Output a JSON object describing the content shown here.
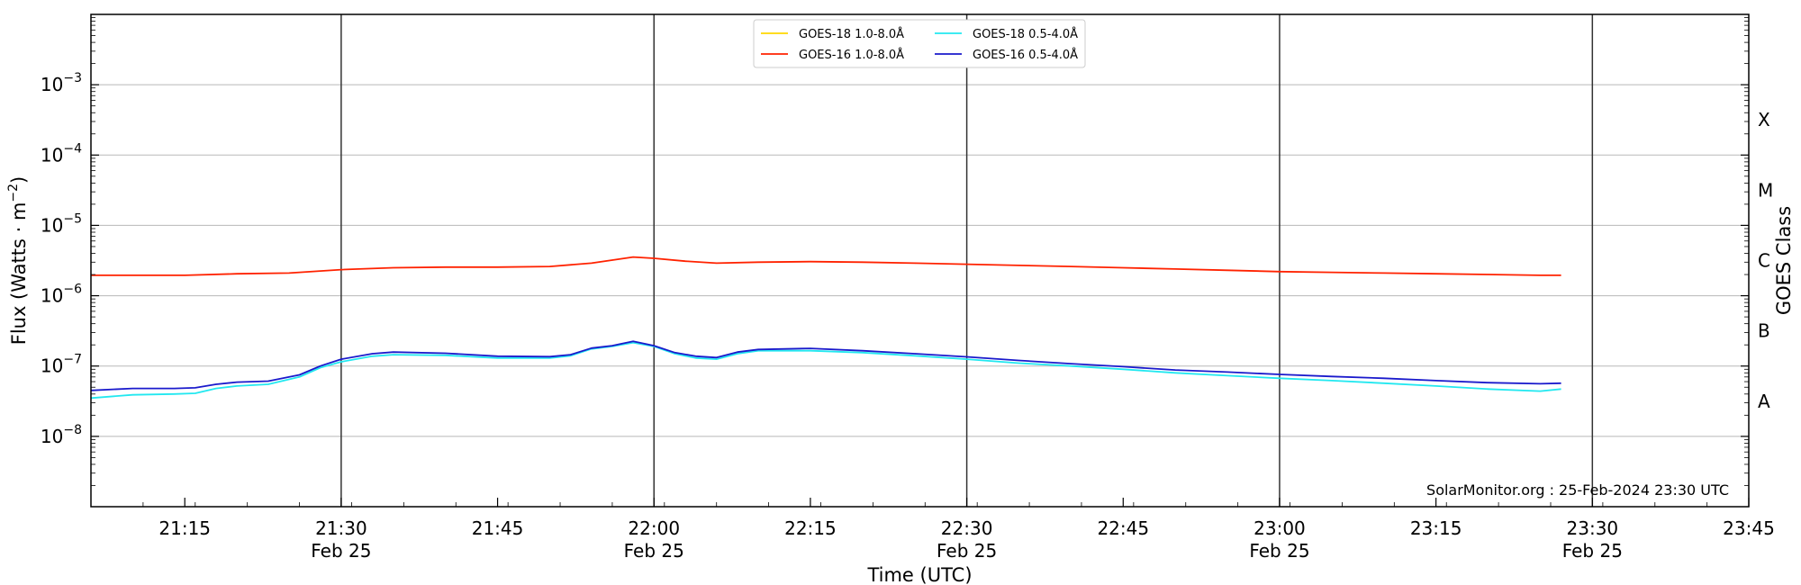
{
  "chart_data": {
    "type": "line",
    "xlabel": "Time (UTC)",
    "ylabel": "Flux (Watts · m⁻²)",
    "ylabel_right": "GOES Class",
    "ylim": [
      1e-09,
      0.01
    ],
    "yscale": "log",
    "xlim": [
      "21:06",
      "23:45"
    ],
    "grid": "horizontal gridlines at decades; vertical lines every 30 minutes",
    "legend_position": "top-center",
    "credit": "SolarMonitor.org : 25-Feb-2024 23:30 UTC",
    "x_ticks": [
      {
        "time": "21:15",
        "label": "21:15",
        "sublabel": ""
      },
      {
        "time": "21:30",
        "label": "21:30",
        "sublabel": "Feb 25"
      },
      {
        "time": "21:45",
        "label": "21:45",
        "sublabel": ""
      },
      {
        "time": "22:00",
        "label": "22:00",
        "sublabel": "Feb 25"
      },
      {
        "time": "22:15",
        "label": "22:15",
        "sublabel": ""
      },
      {
        "time": "22:30",
        "label": "22:30",
        "sublabel": "Feb 25"
      },
      {
        "time": "22:45",
        "label": "22:45",
        "sublabel": ""
      },
      {
        "time": "23:00",
        "label": "23:00",
        "sublabel": "Feb 25"
      },
      {
        "time": "23:15",
        "label": "23:15",
        "sublabel": ""
      },
      {
        "time": "23:30",
        "label": "23:30",
        "sublabel": "Feb 25"
      },
      {
        "time": "23:45",
        "label": "23:45",
        "sublabel": ""
      }
    ],
    "vlines": [
      "21:30",
      "22:00",
      "22:30",
      "23:00",
      "23:30"
    ],
    "y_ticks": [
      {
        "value": 1e-08,
        "base": "10",
        "exp": "−8"
      },
      {
        "value": 1e-07,
        "base": "10",
        "exp": "−7"
      },
      {
        "value": 1e-06,
        "base": "10",
        "exp": "−6"
      },
      {
        "value": 1e-05,
        "base": "10",
        "exp": "−5"
      },
      {
        "value": 0.0001,
        "base": "10",
        "exp": "−4"
      },
      {
        "value": 0.001,
        "base": "10",
        "exp": "−3"
      }
    ],
    "goes_classes": [
      {
        "label": "A",
        "value": 3.16e-08
      },
      {
        "label": "B",
        "value": 3.16e-07
      },
      {
        "label": "C",
        "value": 3.16e-06
      },
      {
        "label": "M",
        "value": 3.16e-05
      },
      {
        "label": "X",
        "value": 0.000316
      }
    ],
    "series": [
      {
        "name": "GOES-18 1.0-8.0Å",
        "color": "#ffd700",
        "points": []
      },
      {
        "name": "GOES-16 1.0-8.0Å",
        "color": "#ff2200",
        "points": [
          [
            "21:06",
            1.95e-06
          ],
          [
            "21:15",
            1.95e-06
          ],
          [
            "21:20",
            2.05e-06
          ],
          [
            "21:25",
            2.1e-06
          ],
          [
            "21:30",
            2.35e-06
          ],
          [
            "21:35",
            2.5e-06
          ],
          [
            "21:40",
            2.55e-06
          ],
          [
            "21:45",
            2.55e-06
          ],
          [
            "21:50",
            2.6e-06
          ],
          [
            "21:54",
            2.9e-06
          ],
          [
            "21:58",
            3.55e-06
          ],
          [
            "22:00",
            3.4e-06
          ],
          [
            "22:03",
            3.1e-06
          ],
          [
            "22:06",
            2.9e-06
          ],
          [
            "22:10",
            3e-06
          ],
          [
            "22:15",
            3.05e-06
          ],
          [
            "22:20",
            3e-06
          ],
          [
            "22:25",
            2.9e-06
          ],
          [
            "22:30",
            2.8e-06
          ],
          [
            "22:35",
            2.7e-06
          ],
          [
            "22:40",
            2.6e-06
          ],
          [
            "22:45",
            2.5e-06
          ],
          [
            "22:50",
            2.4e-06
          ],
          [
            "22:55",
            2.3e-06
          ],
          [
            "23:00",
            2.2e-06
          ],
          [
            "23:05",
            2.15e-06
          ],
          [
            "23:10",
            2.1e-06
          ],
          [
            "23:15",
            2.05e-06
          ],
          [
            "23:20",
            2e-06
          ],
          [
            "23:25",
            1.95e-06
          ],
          [
            "23:27",
            1.95e-06
          ]
        ]
      },
      {
        "name": "GOES-18 0.5-4.0Å",
        "color": "#22e8f0",
        "points": [
          [
            "21:06",
            3.5e-08
          ],
          [
            "21:10",
            3.9e-08
          ],
          [
            "21:14",
            4e-08
          ],
          [
            "21:16",
            4.1e-08
          ],
          [
            "21:18",
            4.8e-08
          ],
          [
            "21:20",
            5.2e-08
          ],
          [
            "21:23",
            5.5e-08
          ],
          [
            "21:26",
            7e-08
          ],
          [
            "21:28",
            9.5e-08
          ],
          [
            "21:30",
            1.15e-07
          ],
          [
            "21:33",
            1.38e-07
          ],
          [
            "21:35",
            1.45e-07
          ],
          [
            "21:40",
            1.42e-07
          ],
          [
            "21:45",
            1.3e-07
          ],
          [
            "21:50",
            1.3e-07
          ],
          [
            "21:52",
            1.4e-07
          ],
          [
            "21:54",
            1.75e-07
          ],
          [
            "21:56",
            1.9e-07
          ],
          [
            "21:58",
            2.15e-07
          ],
          [
            "22:00",
            1.9e-07
          ],
          [
            "22:02",
            1.5e-07
          ],
          [
            "22:04",
            1.3e-07
          ],
          [
            "22:06",
            1.25e-07
          ],
          [
            "22:08",
            1.5e-07
          ],
          [
            "22:10",
            1.65e-07
          ],
          [
            "22:15",
            1.65e-07
          ],
          [
            "22:20",
            1.55e-07
          ],
          [
            "22:25",
            1.4e-07
          ],
          [
            "22:30",
            1.25e-07
          ],
          [
            "22:35",
            1.1e-07
          ],
          [
            "22:40",
            1e-07
          ],
          [
            "22:45",
            9e-08
          ],
          [
            "22:50",
            8e-08
          ],
          [
            "22:55",
            7.3e-08
          ],
          [
            "23:00",
            6.7e-08
          ],
          [
            "23:05",
            6.2e-08
          ],
          [
            "23:10",
            5.7e-08
          ],
          [
            "23:15",
            5.2e-08
          ],
          [
            "23:20",
            4.7e-08
          ],
          [
            "23:25",
            4.4e-08
          ],
          [
            "23:27",
            4.7e-08
          ]
        ]
      },
      {
        "name": "GOES-16 0.5-4.0Å",
        "color": "#1a1acc",
        "points": [
          [
            "21:06",
            4.5e-08
          ],
          [
            "21:10",
            4.8e-08
          ],
          [
            "21:14",
            4.8e-08
          ],
          [
            "21:16",
            4.9e-08
          ],
          [
            "21:18",
            5.5e-08
          ],
          [
            "21:20",
            5.9e-08
          ],
          [
            "21:23",
            6.1e-08
          ],
          [
            "21:26",
            7.5e-08
          ],
          [
            "21:28",
            1e-07
          ],
          [
            "21:30",
            1.25e-07
          ],
          [
            "21:33",
            1.5e-07
          ],
          [
            "21:35",
            1.58e-07
          ],
          [
            "21:40",
            1.52e-07
          ],
          [
            "21:45",
            1.38e-07
          ],
          [
            "21:50",
            1.36e-07
          ],
          [
            "21:52",
            1.45e-07
          ],
          [
            "21:54",
            1.8e-07
          ],
          [
            "21:56",
            1.95e-07
          ],
          [
            "21:58",
            2.25e-07
          ],
          [
            "22:00",
            1.95e-07
          ],
          [
            "22:02",
            1.55e-07
          ],
          [
            "22:04",
            1.38e-07
          ],
          [
            "22:06",
            1.32e-07
          ],
          [
            "22:08",
            1.58e-07
          ],
          [
            "22:10",
            1.72e-07
          ],
          [
            "22:15",
            1.78e-07
          ],
          [
            "22:20",
            1.65e-07
          ],
          [
            "22:25",
            1.5e-07
          ],
          [
            "22:30",
            1.35e-07
          ],
          [
            "22:35",
            1.2e-07
          ],
          [
            "22:40",
            1.08e-07
          ],
          [
            "22:45",
            9.8e-08
          ],
          [
            "22:50",
            8.8e-08
          ],
          [
            "22:55",
            8.2e-08
          ],
          [
            "23:00",
            7.6e-08
          ],
          [
            "23:05",
            7.1e-08
          ],
          [
            "23:10",
            6.7e-08
          ],
          [
            "23:15",
            6.2e-08
          ],
          [
            "23:20",
            5.8e-08
          ],
          [
            "23:25",
            5.6e-08
          ],
          [
            "23:27",
            5.7e-08
          ]
        ]
      }
    ]
  }
}
